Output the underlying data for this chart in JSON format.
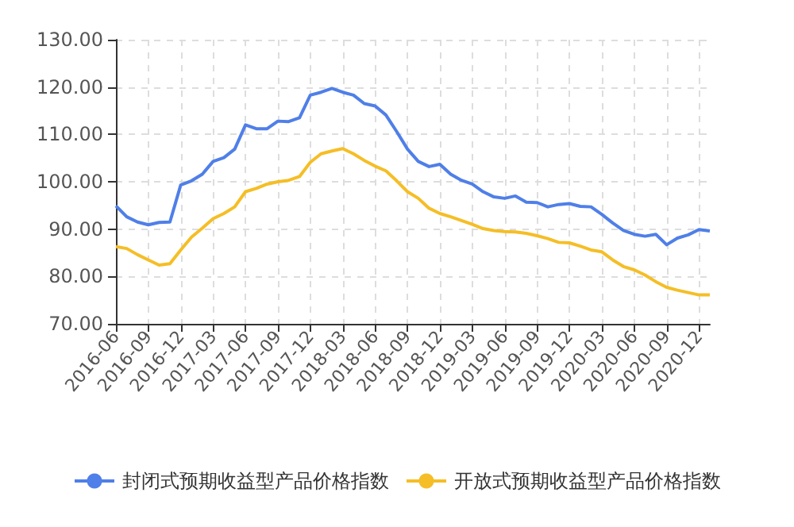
{
  "chart_data": {
    "type": "line",
    "categories": [
      "2016-06",
      null,
      null,
      "2016-09",
      null,
      null,
      "2016-12",
      null,
      null,
      "2017-03",
      null,
      null,
      "2017-06",
      null,
      null,
      "2017-09",
      null,
      null,
      "2017-12",
      null,
      null,
      "2018-03",
      null,
      null,
      "2018-06",
      null,
      null,
      "2018-09",
      null,
      null,
      "2018-12",
      null,
      null,
      "2019-03",
      null,
      null,
      "2019-06",
      null,
      null,
      "2019-09",
      null,
      null,
      "2019-12",
      null,
      null,
      "2020-03",
      null,
      null,
      "2020-06",
      null,
      null,
      "2020-09",
      null,
      null,
      "2020-12",
      null
    ],
    "series": [
      {
        "name": "封闭式预期收益型产品价格指数",
        "color": "#4f7fe8",
        "values": [
          94.9,
          92.6,
          91.5,
          90.9,
          91.4,
          91.5,
          99.3,
          100.2,
          101.6,
          104.3,
          105.1,
          106.9,
          112.0,
          111.2,
          111.2,
          112.8,
          112.7,
          113.5,
          118.3,
          118.9,
          119.7,
          118.9,
          118.3,
          116.5,
          116.0,
          114.1,
          110.6,
          106.9,
          104.3,
          103.2,
          103.7,
          101.6,
          100.3,
          99.5,
          97.9,
          96.8,
          96.5,
          97.0,
          95.7,
          95.6,
          94.7,
          95.2,
          95.4,
          94.8,
          94.7,
          93.1,
          91.3,
          89.7,
          88.9,
          88.5,
          88.9,
          86.7,
          88.1,
          88.8,
          89.9,
          89.6
        ]
      },
      {
        "name": "开放式预期收益型产品价格指数",
        "color": "#f5be26",
        "values": [
          86.3,
          85.9,
          84.6,
          83.5,
          82.4,
          82.7,
          85.6,
          88.3,
          90.2,
          92.2,
          93.3,
          94.7,
          97.9,
          98.6,
          99.5,
          100.0,
          100.3,
          101.1,
          104.1,
          105.9,
          106.5,
          107.0,
          105.9,
          104.5,
          103.3,
          102.3,
          100.2,
          97.9,
          96.5,
          94.4,
          93.3,
          92.6,
          91.8,
          91.0,
          90.1,
          89.7,
          89.5,
          89.4,
          89.1,
          88.6,
          88.0,
          87.2,
          87.1,
          86.4,
          85.6,
          85.2,
          83.5,
          82.1,
          81.4,
          80.3,
          78.9,
          77.7,
          77.1,
          76.6,
          76.1,
          76.1
        ]
      }
    ],
    "ylim": [
      70,
      130
    ],
    "yticks": [
      {
        "value": 70,
        "label": "70.00"
      },
      {
        "value": 80,
        "label": "80.00"
      },
      {
        "value": 90,
        "label": "90.00"
      },
      {
        "value": 100,
        "label": "100.00"
      },
      {
        "value": 110,
        "label": "110.00"
      },
      {
        "value": 120,
        "label": "120.00"
      },
      {
        "value": 130,
        "label": "130.00"
      }
    ],
    "grid": true,
    "legend": "bottom",
    "marker": "none",
    "line_style": "solid"
  }
}
